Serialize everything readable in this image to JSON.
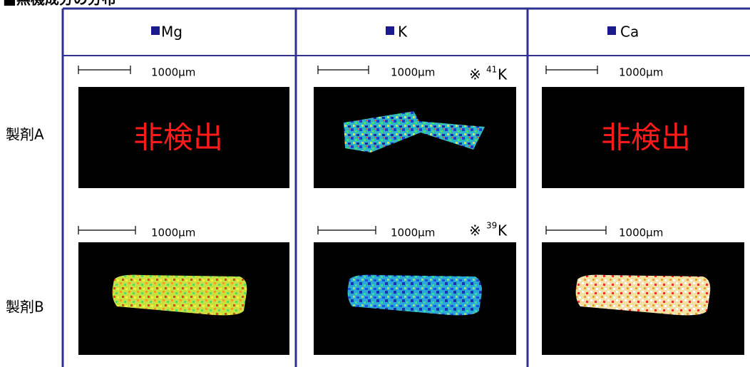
{
  "title": "■無機成分の分布",
  "table": {
    "headers": [
      "Mg",
      "K",
      "Ca"
    ],
    "rows": [
      {
        "label": "製剤A",
        "cells": [
          {
            "scale": "1000μm",
            "note": "非検出"
          },
          {
            "scale": "1000μm",
            "isotope": {
              "prefix": "※",
              "mass": "41",
              "element": "K"
            }
          },
          {
            "scale": "1000μm",
            "note": "非検出"
          }
        ]
      },
      {
        "label": "製剤B",
        "cells": [
          {
            "scale": "1000μm"
          },
          {
            "scale": "1000μm",
            "isotope": {
              "prefix": "※",
              "mass": "39",
              "element": "K"
            }
          },
          {
            "scale": "1000μm"
          }
        ]
      }
    ]
  }
}
